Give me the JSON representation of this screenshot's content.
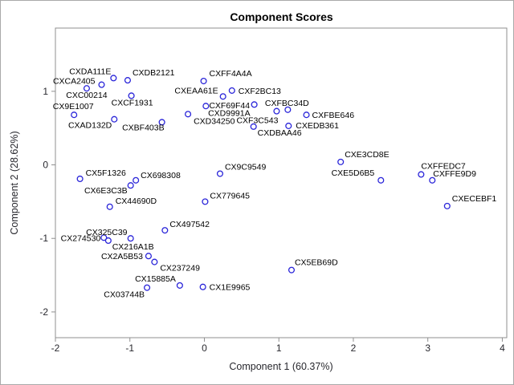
{
  "window": {
    "background": "#ffffff",
    "border_color": "#a9a9a9"
  },
  "chart_data": {
    "type": "scatter",
    "title": "Component Scores",
    "xlabel": "Component 1 (60.37%)",
    "ylabel": "Component 2 (28.62%)",
    "xlim": [
      -2,
      4.06
    ],
    "ylim": [
      -2.35,
      1.86
    ],
    "xticks": [
      -2,
      -1,
      0,
      1,
      2,
      3,
      4
    ],
    "yticks": [
      -2,
      -1,
      0,
      1
    ],
    "grid": false,
    "legend_position": "none",
    "marker": "open-circle",
    "marker_color": "#2a25d9",
    "axis_color": "#8f8f8f",
    "text_color": "#28282e",
    "title_color": "#000000",
    "points": [
      {
        "id": "CXDA111E",
        "x": -1.22,
        "y": 1.18,
        "anchor": "end",
        "label_offset": [
          -3,
          -5
        ]
      },
      {
        "id": "CXCA2405",
        "x": -1.38,
        "y": 1.09,
        "anchor": "end",
        "label_offset": [
          -8,
          -1
        ]
      },
      {
        "id": "CXDB2121",
        "x": -1.03,
        "y": 1.15,
        "anchor": "start",
        "label_offset": [
          6,
          -6
        ]
      },
      {
        "id": "CXC00214",
        "x": -1.58,
        "y": 1.04,
        "anchor": "middle",
        "label_offset": [
          0,
          12
        ]
      },
      {
        "id": "CXCF1931",
        "x": -0.98,
        "y": 0.94,
        "anchor": "middle",
        "label_offset": [
          1,
          12
        ]
      },
      {
        "id": "CX9E1007",
        "x": -1.75,
        "y": 0.68,
        "anchor": "middle",
        "label_offset": [
          -1,
          -7
        ]
      },
      {
        "id": "CXAD132D",
        "x": -1.21,
        "y": 0.62,
        "anchor": "end",
        "label_offset": [
          -3,
          11
        ]
      },
      {
        "id": "CXBF403B",
        "x": -0.57,
        "y": 0.58,
        "anchor": "end",
        "label_offset": [
          3,
          10
        ]
      },
      {
        "id": "CXFF4A4A",
        "x": -0.01,
        "y": 1.14,
        "anchor": "start",
        "label_offset": [
          7,
          -6
        ]
      },
      {
        "id": "CXF2BC13",
        "x": 0.37,
        "y": 1.01,
        "anchor": "start",
        "label_offset": [
          8,
          4
        ]
      },
      {
        "id": "CXEAA61E",
        "x": 0.25,
        "y": 0.93,
        "anchor": "end",
        "label_offset": [
          -6,
          -4
        ]
      },
      {
        "id": "CXF69F44",
        "x": 0.02,
        "y": 0.8,
        "anchor": "start",
        "label_offset": [
          4,
          3
        ]
      },
      {
        "id": "CXD9991A",
        "x": 0.67,
        "y": 0.82,
        "anchor": "end",
        "label_offset": [
          -5,
          14
        ]
      },
      {
        "id": "CXFBC34D",
        "x": 1.12,
        "y": 0.75,
        "anchor": "middle",
        "label_offset": [
          -1,
          -5
        ]
      },
      {
        "id": "CXFBE646",
        "x": 1.37,
        "y": 0.68,
        "anchor": "start",
        "label_offset": [
          7,
          4
        ]
      },
      {
        "id": "CXD34250",
        "x": -0.22,
        "y": 0.69,
        "anchor": "start",
        "label_offset": [
          7,
          12
        ]
      },
      {
        "id": "CXF3C543",
        "x": 0.97,
        "y": 0.73,
        "anchor": "end",
        "label_offset": [
          2,
          15
        ]
      },
      {
        "id": "CXDBAA46",
        "x": 0.66,
        "y": 0.52,
        "anchor": "start",
        "label_offset": [
          5,
          11
        ]
      },
      {
        "id": "CXEDB361",
        "x": 1.13,
        "y": 0.53,
        "anchor": "start",
        "label_offset": [
          9,
          3
        ]
      },
      {
        "id": "CXE3CD8E",
        "x": 1.83,
        "y": 0.04,
        "anchor": "start",
        "label_offset": [
          5,
          -6
        ]
      },
      {
        "id": "CXE5D6B5",
        "x": 2.37,
        "y": -0.21,
        "anchor": "end",
        "label_offset": [
          -8,
          -6
        ]
      },
      {
        "id": "CXFFEDC7",
        "x": 2.91,
        "y": -0.13,
        "anchor": "start",
        "label_offset": [
          0,
          -7
        ]
      },
      {
        "id": "CXFFE9D9",
        "x": 3.06,
        "y": -0.21,
        "anchor": "start",
        "label_offset": [
          1,
          -5
        ]
      },
      {
        "id": "CXECEBF1",
        "x": 3.26,
        "y": -0.56,
        "anchor": "start",
        "label_offset": [
          6,
          -6
        ]
      },
      {
        "id": "CX5F1326",
        "x": -1.67,
        "y": -0.19,
        "anchor": "start",
        "label_offset": [
          7,
          -4
        ]
      },
      {
        "id": "CX698308",
        "x": -0.92,
        "y": -0.21,
        "anchor": "start",
        "label_offset": [
          6,
          -3
        ]
      },
      {
        "id": "CX6E3C3B",
        "x": -0.99,
        "y": -0.28,
        "anchor": "end",
        "label_offset": [
          -4,
          10
        ]
      },
      {
        "id": "CX44690D",
        "x": -1.27,
        "y": -0.57,
        "anchor": "start",
        "label_offset": [
          7,
          -4
        ]
      },
      {
        "id": "CX9C9549",
        "x": 0.21,
        "y": -0.12,
        "anchor": "start",
        "label_offset": [
          6,
          -5
        ]
      },
      {
        "id": "CX779645",
        "x": 0.01,
        "y": -0.5,
        "anchor": "start",
        "label_offset": [
          6,
          -4
        ]
      },
      {
        "id": "CX497542",
        "x": -0.53,
        "y": -0.89,
        "anchor": "start",
        "label_offset": [
          6,
          -4
        ]
      },
      {
        "id": "CX274530",
        "x": -1.35,
        "y": -0.99,
        "anchor": "end",
        "label_offset": [
          -4,
          4
        ]
      },
      {
        "id": "CX325C39",
        "x": -1.29,
        "y": -1.03,
        "anchor": "middle",
        "label_offset": [
          -2,
          -7
        ]
      },
      {
        "id": "CX216A1B",
        "x": -0.99,
        "y": -1.0,
        "anchor": "middle",
        "label_offset": [
          3,
          14
        ]
      },
      {
        "id": "CX2A5B53",
        "x": -0.75,
        "y": -1.24,
        "anchor": "end",
        "label_offset": [
          -7,
          4
        ]
      },
      {
        "id": "CX237249",
        "x": -0.67,
        "y": -1.32,
        "anchor": "start",
        "label_offset": [
          7,
          11
        ]
      },
      {
        "id": "CX5EB69D",
        "x": 1.17,
        "y": -1.43,
        "anchor": "start",
        "label_offset": [
          4,
          -6
        ]
      },
      {
        "id": "CX03744B",
        "x": -0.77,
        "y": -1.67,
        "anchor": "end",
        "label_offset": [
          -3,
          12
        ]
      },
      {
        "id": "CX15885A",
        "x": -0.33,
        "y": -1.64,
        "anchor": "end",
        "label_offset": [
          -5,
          -5
        ]
      },
      {
        "id": "CX1E9965",
        "x": -0.02,
        "y": -1.66,
        "anchor": "start",
        "label_offset": [
          8,
          4
        ]
      }
    ]
  }
}
